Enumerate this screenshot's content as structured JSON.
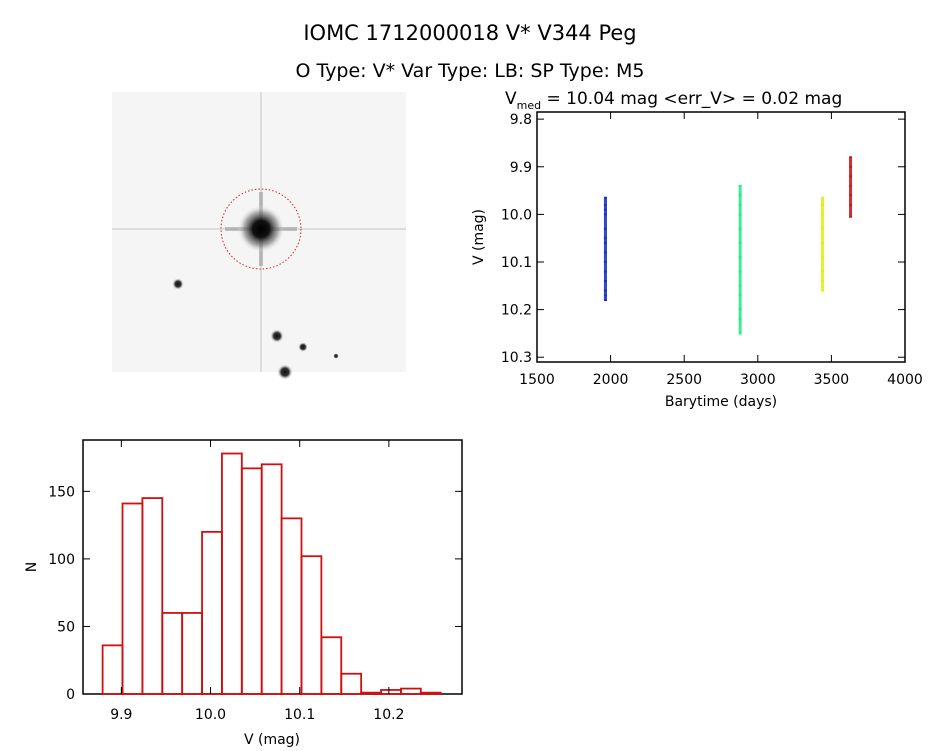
{
  "title_line1": "IOMC 1712000018    V* V344 Peg",
  "title_line2": "O Type: V*  Var Type: LB:  SP Type: M5",
  "chart_data": [
    {
      "type": "scatter",
      "title_prefix": "V",
      "title_subscript": "med",
      "title_rest": " = 10.04 mag <err_V> = 0.02 mag",
      "xlabel": "Barytime (days)",
      "ylabel": "V (mag)",
      "xlim": [
        1500,
        4000
      ],
      "ylim": [
        10.31,
        9.785
      ],
      "y_reversed": true,
      "xticks": [
        1500,
        2000,
        2500,
        3000,
        3500,
        4000
      ],
      "yticks": [
        "9.8",
        "9.9",
        "10.0",
        "10.1",
        "10.2",
        "10.3"
      ],
      "series": [
        {
          "color": "#1a33c0",
          "x": 1965,
          "y": [
            9.965,
            9.98,
            9.99,
            10.0,
            10.03,
            10.05,
            10.06,
            10.08,
            10.1,
            10.12,
            10.14,
            10.16,
            10.17,
            10.18
          ]
        },
        {
          "color": "#2ee88a",
          "x": 2880,
          "y": [
            9.94,
            9.96,
            9.98,
            10.0,
            10.03,
            10.06,
            10.09,
            10.12,
            10.15,
            10.17,
            10.2,
            10.22,
            10.25
          ]
        },
        {
          "color": "#e0ef18",
          "x": 3440,
          "y": [
            9.965,
            9.98,
            10.0,
            10.03,
            10.06,
            10.09,
            10.12,
            10.14,
            10.16
          ]
        },
        {
          "color": "#cc1a1a",
          "x": 3630,
          "y": [
            9.88,
            9.9,
            9.92,
            9.94,
            9.96,
            9.98,
            10.005
          ]
        }
      ]
    },
    {
      "type": "bar",
      "subtype": "histogram",
      "xlabel": "V (mag)",
      "ylabel": "N",
      "xlim": [
        9.857,
        10.282
      ],
      "ylim": [
        0,
        188
      ],
      "xticks": [
        "9.9",
        "10.0",
        "10.1",
        "10.2"
      ],
      "yticks": [
        "0",
        "50",
        "100",
        "150"
      ],
      "color": "#d01010",
      "bin_start": 9.879,
      "bin_width": 0.0223,
      "values": [
        36,
        141,
        145,
        60,
        60,
        120,
        178,
        167,
        170,
        130,
        102,
        42,
        15,
        1,
        3,
        4,
        1
      ]
    }
  ],
  "image": {
    "circle_color": "#d02020"
  }
}
